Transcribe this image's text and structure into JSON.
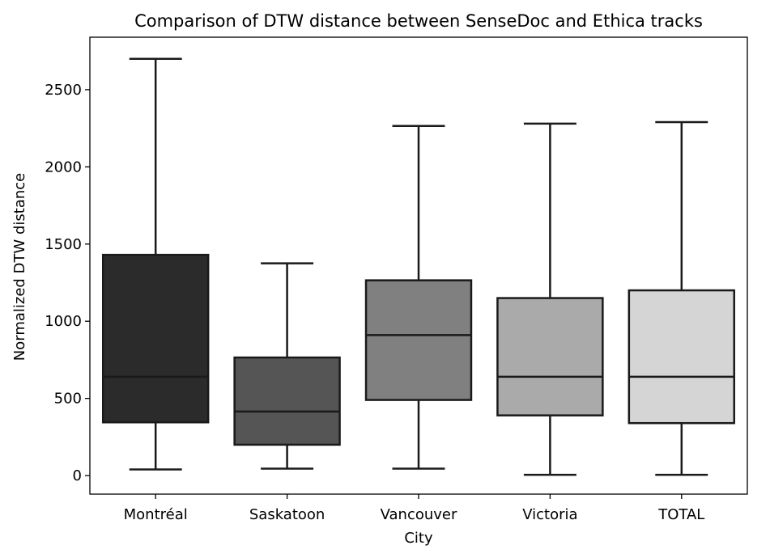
{
  "chart_data": {
    "type": "box",
    "title": "Comparison of DTW distance between SenseDoc and Ethica tracks",
    "xlabel": "City",
    "ylabel": "Normalized DTW distance",
    "categories": [
      "Montréal",
      "Saskatoon",
      "Vancouver",
      "Victoria",
      "TOTAL"
    ],
    "yticks": [
      0,
      500,
      1000,
      1500,
      2000,
      2500
    ],
    "ylim": [
      -120,
      2840
    ],
    "grid": false,
    "legend": "none",
    "boxes": [
      {
        "category": "Montréal",
        "whisker_low": 40,
        "q1": 345,
        "median": 640,
        "q3": 1430,
        "whisker_high": 2700,
        "color": "#2b2b2b"
      },
      {
        "category": "Saskatoon",
        "whisker_low": 45,
        "q1": 200,
        "median": 415,
        "q3": 765,
        "whisker_high": 1375,
        "color": "#555555"
      },
      {
        "category": "Vancouver",
        "whisker_low": 45,
        "q1": 490,
        "median": 910,
        "q3": 1265,
        "whisker_high": 2265,
        "color": "#808080"
      },
      {
        "category": "Victoria",
        "whisker_low": 5,
        "q1": 390,
        "median": 640,
        "q3": 1150,
        "whisker_high": 2280,
        "color": "#aaaaaa"
      },
      {
        "category": "TOTAL",
        "whisker_low": 5,
        "q1": 340,
        "median": 640,
        "q3": 1200,
        "whisker_high": 2290,
        "color": "#d5d5d5"
      }
    ],
    "line_color": "#1a1a1a"
  }
}
